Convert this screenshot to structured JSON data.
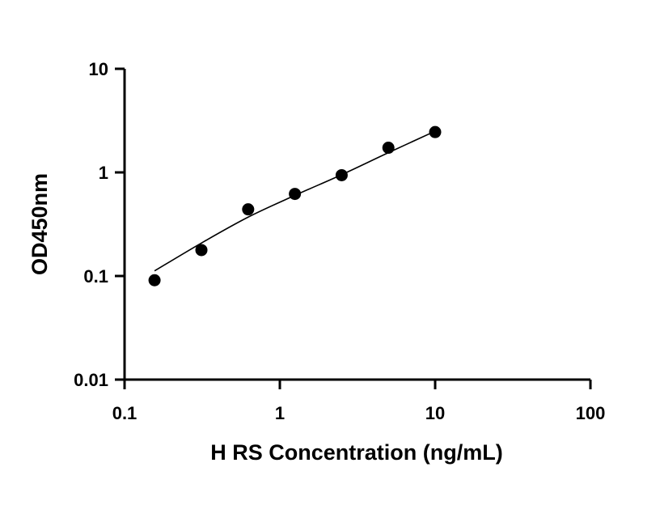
{
  "chart_data": {
    "type": "scatter",
    "xlabel": "H RS Concentration (ng/mL)",
    "ylabel": "OD450nm",
    "x_scale": "log",
    "y_scale": "log",
    "xlim": [
      0.1,
      100
    ],
    "ylim": [
      0.01,
      10
    ],
    "x_ticks": [
      "0.1",
      "1",
      "10",
      "100"
    ],
    "y_ticks": [
      "0.01",
      "0.1",
      "1",
      "10"
    ],
    "grid": false,
    "series": [
      {
        "x": [
          0.156,
          0.3125,
          0.625,
          1.25,
          2.5,
          5,
          10
        ],
        "y": [
          0.091,
          0.178,
          0.44,
          0.62,
          0.94,
          1.73,
          2.45
        ]
      }
    ],
    "fit_curve": {
      "x": [
        0.156,
        0.3125,
        0.625,
        1.25,
        2.5,
        5,
        10
      ],
      "y": [
        0.112,
        0.208,
        0.37,
        0.6,
        0.95,
        1.55,
        2.5
      ]
    }
  }
}
